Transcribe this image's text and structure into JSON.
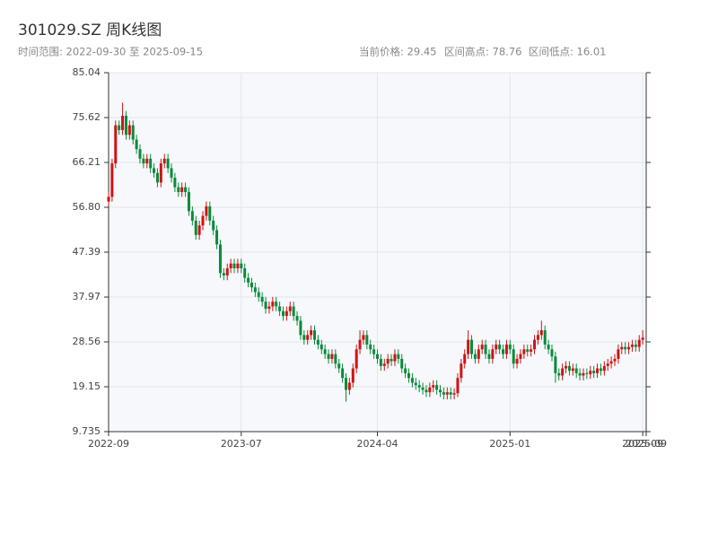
{
  "chart_data": {
    "type": "candlestick",
    "title": "301029.SZ 周K线图",
    "subtitle": "时间范围: 2022-09-30 至 2025-09-15",
    "annotations": [
      "当前价格: 29.45",
      "区间高点: 78.76",
      "区间低点: 16.01"
    ],
    "up_color": "#cc1414",
    "down_color": "#0a8a3a",
    "open": [
      58,
      59,
      66,
      74,
      73,
      76,
      72,
      74,
      71,
      69,
      67,
      66,
      67,
      65,
      64,
      62,
      66,
      67,
      65,
      63,
      61,
      60,
      61,
      60,
      56,
      54,
      51,
      53,
      55,
      57,
      54,
      52,
      49,
      43,
      42.5,
      44,
      45,
      44,
      45,
      44,
      42,
      41,
      40,
      39,
      38,
      37,
      35.5,
      36,
      37,
      36,
      35,
      34,
      35,
      36,
      34,
      33,
      30,
      29,
      30,
      31,
      29,
      28,
      27,
      26,
      25,
      26,
      24,
      23,
      21,
      18.5,
      20,
      23,
      27,
      29,
      30,
      28,
      27,
      26,
      25,
      23.5,
      24,
      25,
      24.5,
      26,
      25,
      23,
      22,
      21,
      20,
      19.5,
      19,
      18.5,
      18,
      19,
      19.5,
      18.5,
      18,
      17.5,
      18,
      17.5,
      17.8,
      21,
      24,
      26,
      29,
      26,
      25,
      27,
      28,
      26,
      25,
      27,
      28,
      27,
      26,
      28,
      27,
      24,
      25,
      26,
      27,
      26.5,
      27,
      29,
      30,
      31,
      28,
      27,
      25.5,
      22,
      21.5,
      23,
      23.5,
      22.5,
      23,
      22,
      21.5,
      22,
      21.8,
      22.5,
      22,
      23,
      22.5,
      23.5,
      24,
      24.5,
      25,
      27,
      27.5,
      27,
      27.5,
      28,
      27.5,
      29
    ],
    "high": [
      60,
      67,
      75,
      75,
      78.76,
      77,
      75,
      75,
      72,
      70,
      68,
      68,
      68,
      66,
      65,
      67,
      68,
      68,
      66,
      64,
      62,
      62,
      62,
      61,
      57,
      55,
      54,
      56,
      58,
      58,
      55,
      53,
      50,
      44,
      45,
      46,
      46,
      46,
      46,
      45,
      43,
      42,
      41,
      40,
      39,
      38,
      37,
      38,
      38,
      37,
      36,
      36,
      37,
      37,
      35,
      34,
      31,
      31,
      32,
      32,
      30,
      29,
      28,
      27,
      27,
      27,
      25,
      24,
      22,
      21,
      24,
      28,
      31,
      31,
      31,
      29,
      28,
      27,
      26,
      25,
      26,
      26,
      27,
      27,
      26,
      24,
      23,
      22,
      21,
      20.5,
      20,
      19.5,
      20,
      20.5,
      20.5,
      19.5,
      19,
      19,
      19,
      18.8,
      22,
      25,
      27,
      31,
      30,
      27,
      28,
      29,
      29,
      27,
      28,
      29,
      29,
      28,
      29,
      29,
      28,
      26,
      27,
      28,
      28,
      28,
      30,
      31,
      33,
      32,
      29,
      28,
      26.5,
      23,
      24,
      24.5,
      24.5,
      24,
      24,
      23,
      23,
      23,
      23.5,
      23.5,
      24,
      24,
      24.5,
      25,
      25.5,
      26,
      28,
      28.5,
      28.5,
      28.5,
      29,
      29,
      30,
      31
    ],
    "low": [
      57,
      58,
      65,
      72,
      72,
      71,
      71,
      70,
      68,
      66,
      65,
      65,
      64,
      63,
      61,
      61,
      65,
      64,
      62,
      60,
      59,
      59,
      59,
      55,
      53,
      50,
      50,
      52,
      54,
      53,
      51,
      48,
      42,
      41.5,
      41.5,
      43,
      43,
      43,
      43,
      41,
      40,
      39,
      38,
      37,
      36,
      34.5,
      34.5,
      35,
      35,
      34,
      33,
      33,
      34,
      33,
      32,
      29,
      28,
      28,
      29,
      28,
      27,
      26,
      25,
      24,
      24,
      23,
      22,
      20,
      16.01,
      17.5,
      19,
      22,
      26,
      28,
      27,
      26,
      25,
      24,
      22.5,
      22.5,
      23,
      23.5,
      23.5,
      24,
      22,
      21,
      20,
      19,
      18.5,
      18,
      17.5,
      17,
      17,
      18,
      17.5,
      17,
      16.5,
      16.5,
      16.5,
      16.5,
      17,
      20,
      23,
      25,
      25,
      24,
      24,
      26,
      25,
      24,
      24,
      26,
      26,
      25,
      25,
      26,
      23,
      23,
      24,
      25,
      25.5,
      25.5,
      26,
      28,
      29,
      27,
      26,
      24.5,
      20,
      20.5,
      20.5,
      22,
      21.5,
      21.5,
      21,
      20.5,
      20.5,
      20.8,
      20.8,
      21,
      21,
      21.5,
      21.5,
      22.5,
      23,
      23.5,
      24,
      26,
      26,
      26,
      26.5,
      26.5,
      26.5,
      28
    ],
    "close": [
      59,
      66,
      74,
      73,
      76,
      72,
      74,
      71,
      69,
      67,
      66,
      67,
      65,
      64,
      62,
      66,
      67,
      65,
      63,
      61,
      60,
      61,
      60,
      56,
      54,
      51,
      53,
      55,
      57,
      54,
      52,
      49,
      43,
      42.5,
      44,
      45,
      44,
      45,
      44,
      42,
      41,
      40,
      39,
      38,
      37,
      35.5,
      36,
      37,
      36,
      35,
      34,
      35,
      36,
      34,
      33,
      30,
      29,
      30,
      31,
      29,
      28,
      27,
      26,
      25,
      26,
      24,
      23,
      21,
      18.5,
      20,
      23,
      27,
      29,
      30,
      28,
      27,
      26,
      25,
      23.5,
      24,
      25,
      24.5,
      26,
      25,
      23,
      22,
      21,
      20,
      19.5,
      19,
      18.5,
      18,
      19,
      19.5,
      18.5,
      18,
      17.5,
      18,
      17.5,
      17.8,
      21,
      24,
      26,
      29,
      26,
      25,
      27,
      28,
      26,
      25,
      27,
      28,
      27,
      26,
      28,
      27,
      24,
      25,
      26,
      27,
      26.5,
      27,
      29,
      30,
      31,
      28,
      27,
      25.5,
      22,
      21.5,
      23,
      23.5,
      22.5,
      23,
      22,
      21.5,
      22,
      21.8,
      22.5,
      22,
      23,
      22.5,
      23.5,
      24,
      24.5,
      25,
      27,
      27.5,
      27,
      27.5,
      28,
      27.5,
      29,
      29.45
    ],
    "xlim": [
      0,
      154
    ],
    "xticks": [
      {
        "value": 0,
        "label": "2022-09"
      },
      {
        "value": 38,
        "label": "2023-07"
      },
      {
        "value": 77,
        "label": "2024-04"
      },
      {
        "value": 115,
        "label": "2025-01"
      },
      {
        "value": 153,
        "label": "2025-09"
      },
      {
        "value": 154,
        "label": "2025-09"
      }
    ],
    "ylim": [
      9.735,
      85.04
    ],
    "yticks": [
      9.735,
      19.15,
      28.56,
      37.97,
      47.39,
      {
        "value": 56.8,
        "label": "56.80"
      },
      66.21,
      75.62,
      85.04
    ],
    "grid": true
  }
}
